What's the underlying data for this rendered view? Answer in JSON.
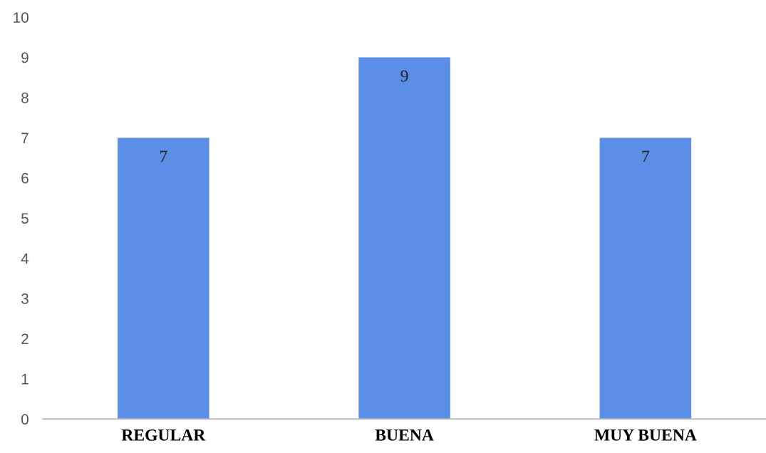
{
  "chart_data": {
    "type": "bar",
    "categories": [
      "REGULAR",
      "BUENA",
      "MUY BUENA"
    ],
    "values": [
      7,
      9,
      7
    ],
    "color": "#5b8ee6",
    "ylim": [
      0,
      10
    ],
    "yticks": [
      0,
      1,
      2,
      3,
      4,
      5,
      6,
      7,
      8,
      9,
      10
    ],
    "grid": false,
    "data_labels": true
  }
}
